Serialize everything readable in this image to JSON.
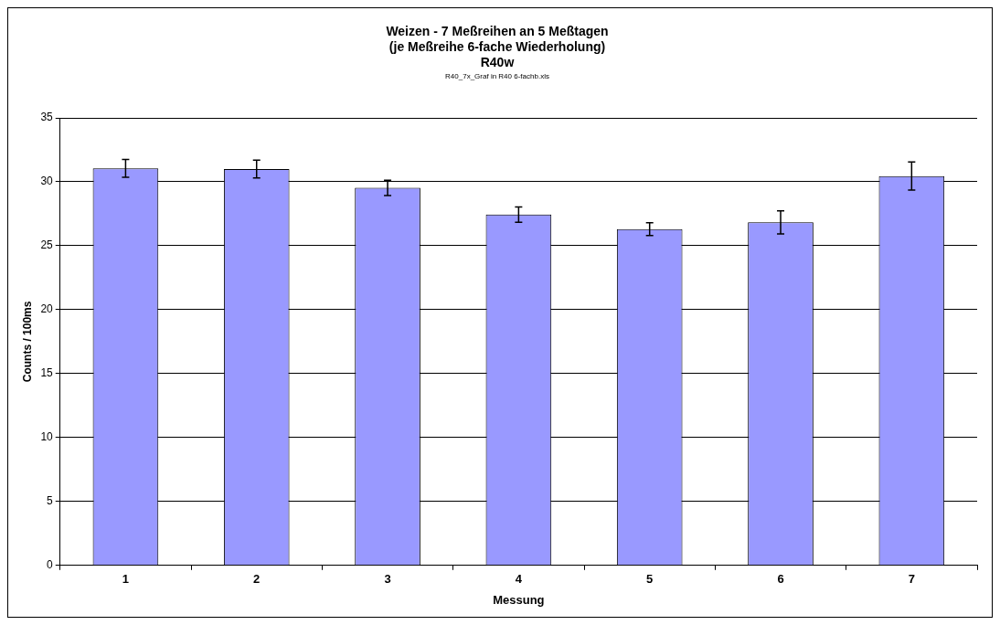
{
  "chart_data": {
    "type": "bar",
    "title": "Weizen - 7 Meßreihen an 5 Meßtagen\n(je Meßreihe 6-fache Wiederholung)\nR40w",
    "subtitle": "R40_7x_Graf in R40 6-fachb.xls",
    "xlabel": "Messung",
    "ylabel": "Counts / 100ms",
    "categories": [
      "1",
      "2",
      "3",
      "4",
      "5",
      "6",
      "7"
    ],
    "values": [
      31.05,
      31.0,
      29.53,
      27.44,
      26.3,
      26.83,
      30.45
    ],
    "errors": [
      0.7,
      0.7,
      0.6,
      0.6,
      0.5,
      0.9,
      1.1
    ],
    "color": "#9999ff",
    "ylim": [
      0,
      35
    ],
    "yticks": [
      0,
      5,
      10,
      15,
      20,
      25,
      30,
      35
    ],
    "grid": "y"
  }
}
